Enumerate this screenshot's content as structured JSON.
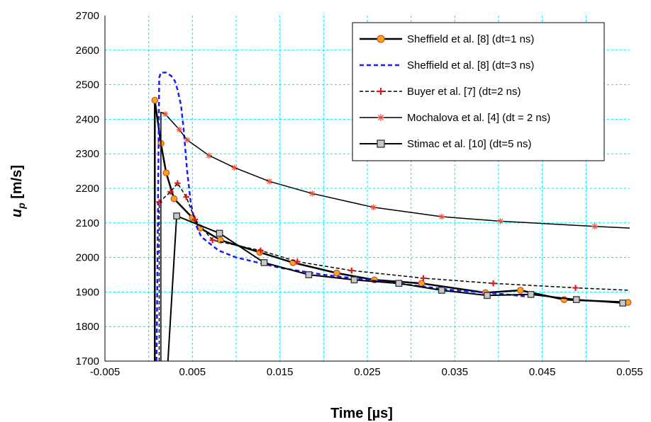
{
  "chart_data": {
    "type": "line",
    "title": "",
    "xlabel": "Time [µs]",
    "ylabel_main": "u",
    "ylabel_sub": "p",
    "ylabel_unit": " [m/s]",
    "xlim": [
      -0.005,
      0.055
    ],
    "ylim": [
      1700,
      2700
    ],
    "xticks": [
      -0.005,
      0.005,
      0.015,
      0.025,
      0.035,
      0.045,
      0.055
    ],
    "xtick_labels": [
      "-0.005",
      "0.005",
      "0.015",
      "0.025",
      "0.035",
      "0.045",
      "0.055"
    ],
    "yticks": [
      1700,
      1800,
      1900,
      2000,
      2100,
      2200,
      2300,
      2400,
      2500,
      2600,
      2700
    ],
    "ytick_labels": [
      "1700",
      "1800",
      "1900",
      "2000",
      "2100",
      "2200",
      "2300",
      "2400",
      "2500",
      "2600",
      "2700"
    ],
    "xgrid_step": 0.005,
    "ygrid_step": 100,
    "grid": true,
    "grid_color": "#00e5ee",
    "legend_position": "top-right",
    "series": [
      {
        "name": "Sheffield et al. [8] (dt=1 ns)",
        "line_color": "#000000",
        "line_width": 2.5,
        "dash": "",
        "marker": "circle",
        "marker_fill": "#f5a623",
        "marker_stroke": "#d4501f",
        "x": [
          0.0007,
          0.0007,
          0.0014,
          0.002,
          0.0029,
          0.005,
          0.0059,
          0.0082,
          0.0127,
          0.0165,
          0.0215,
          0.0258,
          0.0312,
          0.0385,
          0.0425,
          0.0475,
          0.0548
        ],
        "y": [
          1700,
          2455,
          2330,
          2245,
          2170,
          2115,
          2085,
          2050,
          2015,
          1985,
          1955,
          1935,
          1925,
          1898,
          1905,
          1878,
          1870
        ],
        "markers_at": [
          1,
          2,
          3,
          4,
          5,
          6,
          7,
          8,
          9,
          10,
          11,
          12,
          13,
          14,
          15,
          16
        ]
      },
      {
        "name": "Sheffield et al. [8] (dt=3 ns)",
        "line_color": "#1a1aff",
        "line_width": 2.5,
        "dash": "6 4",
        "marker": "none",
        "x": [
          0.0009,
          0.0012,
          0.0014,
          0.002,
          0.0026,
          0.003,
          0.0033,
          0.0037,
          0.004,
          0.0044,
          0.0048,
          0.0053,
          0.006,
          0.007,
          0.008,
          0.01,
          0.0125,
          0.015,
          0.02,
          0.025,
          0.03,
          0.035,
          0.04,
          0.044
        ],
        "y": [
          1700,
          2520,
          2535,
          2535,
          2525,
          2510,
          2485,
          2440,
          2370,
          2250,
          2160,
          2100,
          2060,
          2040,
          2020,
          2000,
          1985,
          1970,
          1950,
          1935,
          1920,
          1905,
          1895,
          1885
        ],
        "markers_at": []
      },
      {
        "name": "Buyer et al. [7] (dt=2 ns)",
        "line_color": "#000000",
        "line_width": 1.5,
        "dash": "5 3",
        "marker": "plus",
        "marker_fill": "none",
        "marker_stroke": "#e0191e",
        "x": [
          0.0012,
          0.0012,
          0.0025,
          0.0033,
          0.0043,
          0.0053,
          0.0073,
          0.0128,
          0.017,
          0.0232,
          0.0314,
          0.0394,
          0.0488,
          0.055
        ],
        "y": [
          1700,
          2160,
          2190,
          2215,
          2175,
          2110,
          2050,
          2020,
          1988,
          1962,
          1940,
          1925,
          1912,
          1905
        ],
        "markers_at": [
          1,
          2,
          3,
          4,
          5,
          6,
          7,
          8,
          9,
          10,
          11,
          12
        ]
      },
      {
        "name": "Mochalova et al. [4] (dt = 2 ns)",
        "line_color": "#000000",
        "line_width": 1.5,
        "dash": "",
        "marker": "star",
        "marker_fill": "none",
        "marker_stroke": "#e8503a",
        "x": [
          0.0014,
          0.0014,
          0.0019,
          0.0035,
          0.0044,
          0.0069,
          0.0098,
          0.0138,
          0.0187,
          0.0257,
          0.0335,
          0.0402,
          0.051,
          0.055
        ],
        "y": [
          1700,
          2420,
          2415,
          2370,
          2340,
          2295,
          2260,
          2220,
          2185,
          2145,
          2118,
          2105,
          2090,
          2085
        ],
        "markers_at": [
          2,
          3,
          4,
          5,
          6,
          7,
          8,
          9,
          10,
          11,
          12
        ]
      },
      {
        "name": "Stimac et al. [10] (dt=5 ns)",
        "line_color": "#000000",
        "line_width": 2,
        "dash": "",
        "marker": "square",
        "marker_fill": "#c8c8c8",
        "marker_stroke": "#333333",
        "x": [
          0.0022,
          0.0032,
          0.0081,
          0.0132,
          0.0183,
          0.0235,
          0.0286,
          0.0335,
          0.0387,
          0.0437,
          0.0489,
          0.0542
        ],
        "y": [
          1700,
          2120,
          2070,
          1985,
          1950,
          1935,
          1925,
          1905,
          1890,
          1893,
          1878,
          1868
        ],
        "markers_at": [
          1,
          2,
          3,
          4,
          5,
          6,
          7,
          8,
          9,
          10,
          11
        ]
      }
    ]
  }
}
